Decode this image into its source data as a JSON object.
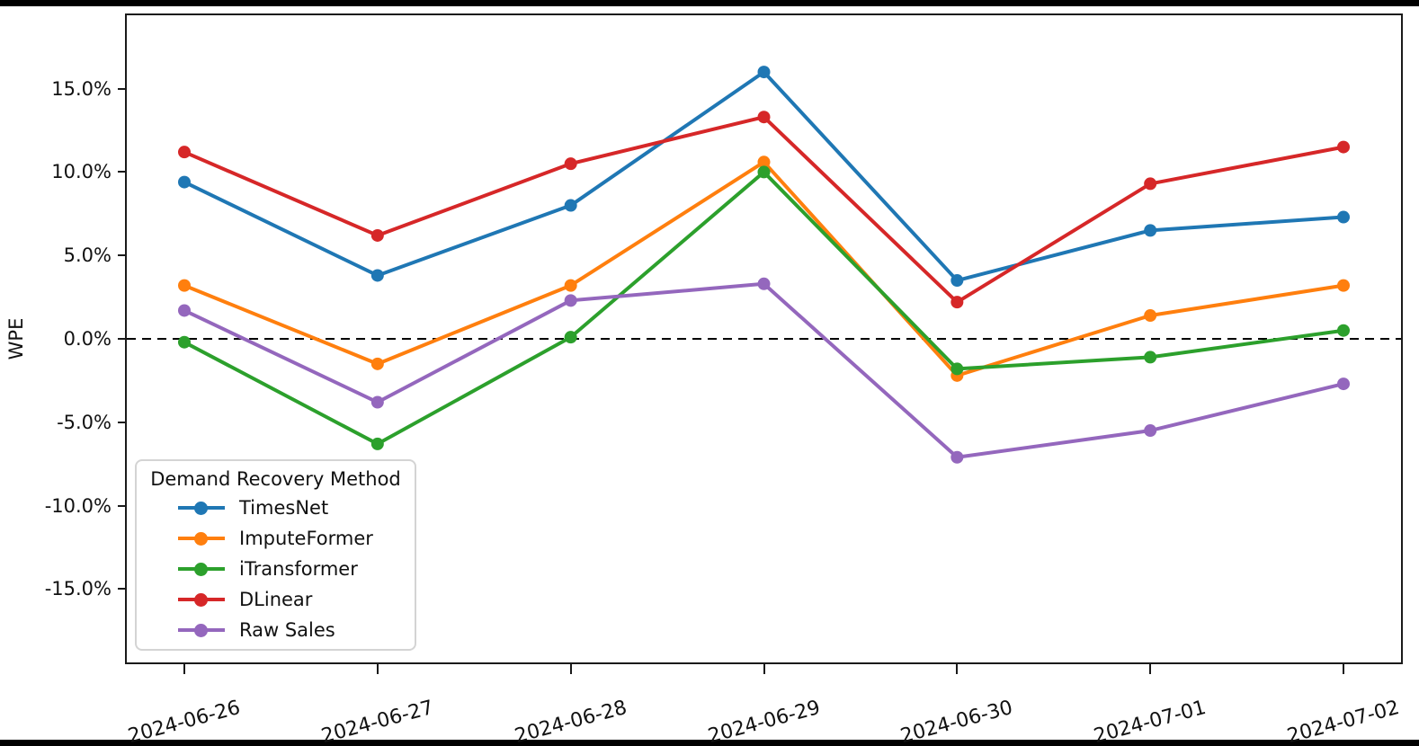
{
  "window": {
    "background_color": "#ffffff",
    "letterbox_color": "#000000",
    "axis_color": "#1a1a1a",
    "text_color": "#111111"
  },
  "chart_data": {
    "type": "line",
    "title": "",
    "xlabel": "",
    "ylabel": "WPE",
    "x": [
      "2024-06-26",
      "2024-06-27",
      "2024-06-28",
      "2024-06-29",
      "2024-06-30",
      "2024-07-01",
      "2024-07-02"
    ],
    "series": [
      {
        "name": "TimesNet",
        "color": "#1f77b4",
        "values": [
          9.4,
          3.8,
          8.0,
          16.0,
          3.5,
          6.5,
          7.3
        ]
      },
      {
        "name": "ImputeFormer",
        "color": "#ff7f0e",
        "values": [
          3.2,
          -1.5,
          3.2,
          10.6,
          -2.2,
          1.4,
          3.2
        ]
      },
      {
        "name": "iTransformer",
        "color": "#2ca02c",
        "values": [
          -0.2,
          -6.3,
          0.1,
          10.0,
          -1.8,
          -1.1,
          0.5
        ]
      },
      {
        "name": "DLinear",
        "color": "#d62728",
        "values": [
          11.2,
          6.2,
          10.5,
          13.3,
          2.2,
          9.3,
          11.5
        ]
      },
      {
        "name": "Raw Sales",
        "color": "#9467bd",
        "values": [
          1.7,
          -3.8,
          2.3,
          3.3,
          -7.1,
          -5.5,
          -2.7
        ]
      }
    ],
    "ylim": [
      -19.4,
      19.4
    ],
    "yticks": [
      {
        "value": 15,
        "label": "15.0%"
      },
      {
        "value": 10,
        "label": "10.0%"
      },
      {
        "value": 5,
        "label": "5.0%"
      },
      {
        "value": 0,
        "label": "0.0%"
      },
      {
        "value": -5,
        "label": "-5.0%"
      },
      {
        "value": -10,
        "label": "-10.0%"
      },
      {
        "value": -15,
        "label": "-15.0%"
      }
    ],
    "zero_line": {
      "style": "dashed",
      "color": "#000000",
      "value": 0
    },
    "grid": false,
    "x_tick_rotation_deg": 15,
    "legend": {
      "title": "Demand Recovery Method",
      "position": "lower left"
    }
  }
}
